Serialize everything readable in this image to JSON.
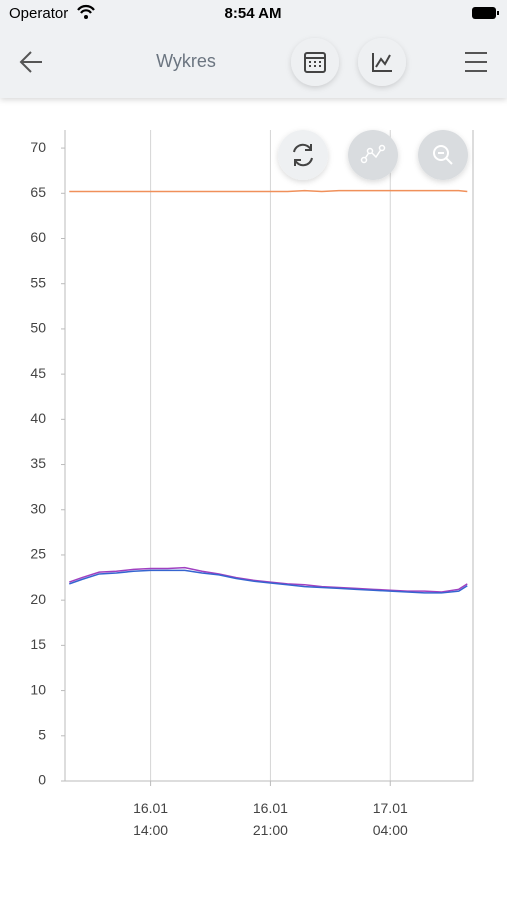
{
  "status_bar": {
    "carrier": "Operator",
    "time": "8:54 AM"
  },
  "header": {
    "title": "Wykres"
  },
  "chart_data": {
    "type": "line",
    "x": [
      "16.01 09:15",
      "16.01 10:00",
      "16.01 11:00",
      "16.01 12:00",
      "16.01 13:00",
      "16.01 14:00",
      "16.01 15:00",
      "16.01 16:00",
      "16.01 17:00",
      "16.01 18:00",
      "16.01 19:00",
      "16.01 20:00",
      "16.01 21:00",
      "16.01 22:00",
      "16.01 23:00",
      "17.01 00:00",
      "17.01 01:00",
      "17.01 02:00",
      "17.01 03:00",
      "17.01 04:00",
      "17.01 05:00",
      "17.01 06:00",
      "17.01 07:00",
      "17.01 08:00",
      "17.01 08:30"
    ],
    "series": [
      {
        "color": "#f0905a",
        "values": [
          65.2,
          65.2,
          65.2,
          65.2,
          65.2,
          65.2,
          65.2,
          65.2,
          65.2,
          65.2,
          65.2,
          65.2,
          65.2,
          65.2,
          65.3,
          65.2,
          65.3,
          65.3,
          65.3,
          65.3,
          65.3,
          65.3,
          65.3,
          65.3,
          65.2
        ]
      },
      {
        "color": "#a040c0",
        "values": [
          22.0,
          22.5,
          23.1,
          23.2,
          23.4,
          23.5,
          23.5,
          23.6,
          23.2,
          22.9,
          22.5,
          22.2,
          22.0,
          21.8,
          21.7,
          21.5,
          21.4,
          21.3,
          21.2,
          21.1,
          21.0,
          21.0,
          20.9,
          21.2,
          21.8
        ]
      },
      {
        "color": "#3565d0",
        "values": [
          21.8,
          22.3,
          22.9,
          23.0,
          23.2,
          23.3,
          23.3,
          23.3,
          23.0,
          22.8,
          22.4,
          22.1,
          21.9,
          21.7,
          21.5,
          21.4,
          21.3,
          21.2,
          21.1,
          21.0,
          20.9,
          20.8,
          20.8,
          21.0,
          21.6
        ]
      }
    ],
    "xlim": [
      "16.01 09:00",
      "17.01 08:50"
    ],
    "xticks": [
      "16.01 14:00",
      "16.01 21:00",
      "17.01 04:00"
    ],
    "ylim": [
      0,
      72
    ],
    "yticks": [
      0,
      5,
      10,
      15,
      20,
      25,
      30,
      35,
      40,
      45,
      50,
      55,
      60,
      65,
      70
    ],
    "grid": "x"
  }
}
